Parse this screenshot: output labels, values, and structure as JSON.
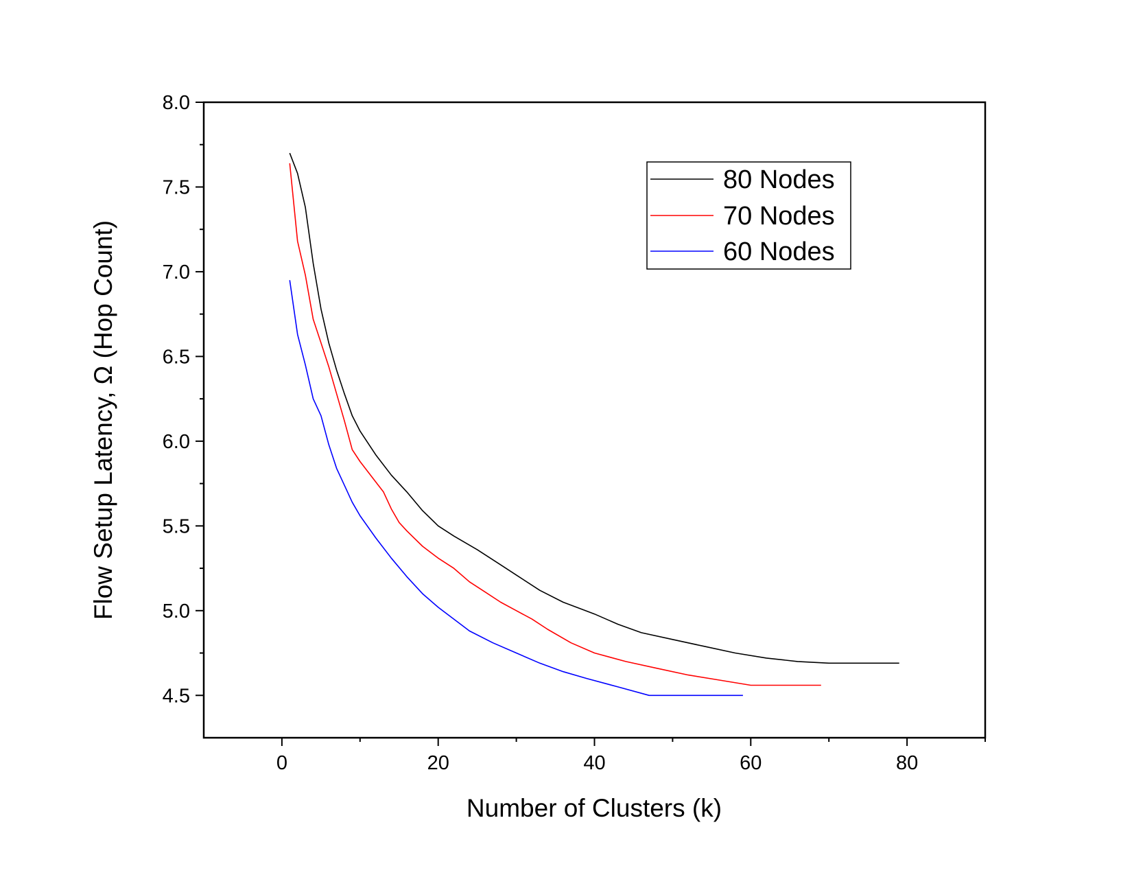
{
  "chart_data": {
    "type": "line",
    "title": "",
    "xlabel": "Number of Clusters (k)",
    "ylabel": "Flow Setup Latency, Ω (Hop Count)",
    "xlim": [
      -10,
      90
    ],
    "ylim": [
      4.25,
      8.0
    ],
    "xticks": [
      0,
      20,
      40,
      60,
      80
    ],
    "xtick_labels": [
      "0",
      "20",
      "40",
      "60",
      "80"
    ],
    "yticks": [
      4.5,
      5.0,
      5.5,
      6.0,
      6.5,
      7.0,
      7.5,
      8.0
    ],
    "ytick_labels": [
      "4.5",
      "5.0",
      "5.5",
      "6.0",
      "6.5",
      "7.0",
      "7.5",
      "8.0"
    ],
    "grid": false,
    "legend_position": "top-right",
    "series": [
      {
        "name": "80 Nodes",
        "color": "#000000",
        "x": [
          1,
          2,
          3,
          4,
          5,
          6,
          7,
          8,
          9,
          10,
          12,
          14,
          16,
          18,
          20,
          22,
          25,
          28,
          30,
          33,
          36,
          40,
          43,
          46,
          50,
          54,
          58,
          62,
          66,
          70,
          74,
          79
        ],
        "y": [
          7.7,
          7.58,
          7.38,
          7.05,
          6.78,
          6.58,
          6.42,
          6.28,
          6.15,
          6.06,
          5.92,
          5.8,
          5.7,
          5.59,
          5.5,
          5.44,
          5.36,
          5.27,
          5.21,
          5.12,
          5.05,
          4.98,
          4.92,
          4.87,
          4.83,
          4.79,
          4.75,
          4.72,
          4.7,
          4.69,
          4.69,
          4.69
        ]
      },
      {
        "name": "70 Nodes",
        "color": "#ff0000",
        "x": [
          1,
          2,
          3,
          4,
          5,
          6,
          7,
          8,
          9,
          10,
          12,
          13,
          14,
          15,
          16,
          18,
          20,
          22,
          24,
          26,
          28,
          30,
          32,
          34,
          37,
          40,
          44,
          48,
          52,
          56,
          60,
          64,
          69
        ],
        "y": [
          7.64,
          7.18,
          6.98,
          6.72,
          6.58,
          6.44,
          6.28,
          6.12,
          5.95,
          5.88,
          5.76,
          5.7,
          5.6,
          5.52,
          5.47,
          5.38,
          5.31,
          5.25,
          5.17,
          5.11,
          5.05,
          5.0,
          4.95,
          4.89,
          4.81,
          4.75,
          4.7,
          4.66,
          4.62,
          4.59,
          4.56,
          4.56,
          4.56
        ]
      },
      {
        "name": "60 Nodes",
        "color": "#0000ff",
        "x": [
          1,
          2,
          3,
          4,
          5,
          6,
          7,
          8,
          9,
          10,
          12,
          14,
          16,
          18,
          20,
          22,
          24,
          27,
          30,
          33,
          36,
          39,
          43,
          47,
          51,
          55,
          59
        ],
        "y": [
          6.95,
          6.63,
          6.45,
          6.25,
          6.15,
          5.98,
          5.84,
          5.74,
          5.64,
          5.56,
          5.43,
          5.31,
          5.2,
          5.1,
          5.02,
          4.95,
          4.88,
          4.81,
          4.75,
          4.69,
          4.64,
          4.6,
          4.55,
          4.5,
          4.5,
          4.5,
          4.5
        ]
      }
    ]
  }
}
